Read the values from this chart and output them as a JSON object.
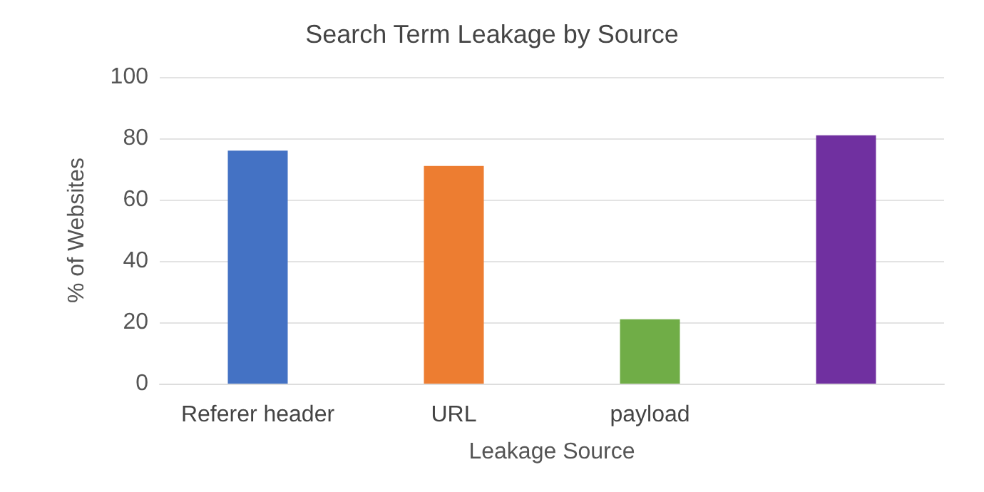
{
  "chart_data": {
    "type": "bar",
    "title": "Search Term Leakage by Source",
    "xlabel": "Leakage Source",
    "ylabel": "% of Websites",
    "categories": [
      "Referer header",
      "URL",
      "payload",
      null
    ],
    "values": [
      76,
      71,
      21,
      81
    ],
    "colors": [
      "#4472c4",
      "#ed7d31",
      "#70ad47",
      "#7030a0"
    ],
    "ylim": [
      0,
      100
    ],
    "yticks": [
      0,
      20,
      40,
      60,
      80,
      100
    ],
    "grid": "y"
  }
}
